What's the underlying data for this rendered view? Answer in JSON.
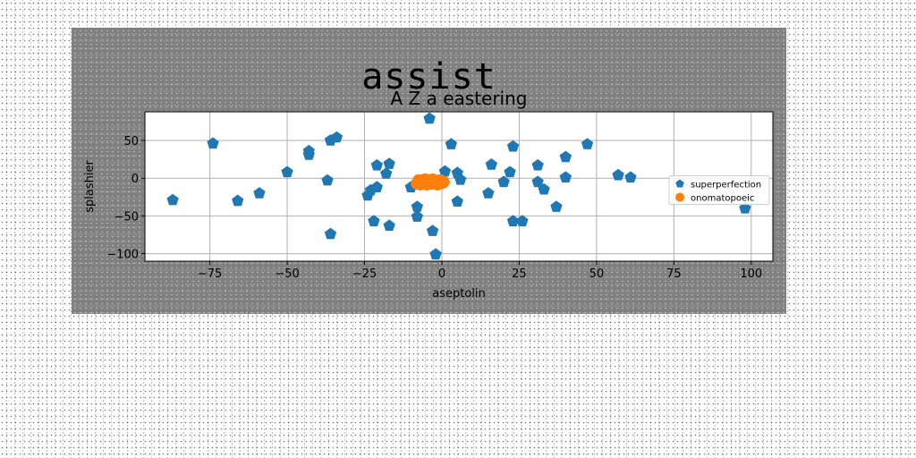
{
  "figure": {
    "title": "assist"
  },
  "colors": {
    "figure_bg": "#808080",
    "axes_bg": "#ffffff",
    "series_1": "#1f77b4",
    "series_2": "#ff7f0e",
    "grid": "#b0b0b0"
  },
  "chart_data": {
    "type": "scatter",
    "title": "A Z a eastering",
    "xlabel": "aseptolin",
    "ylabel": "splashier",
    "xlim": [
      -96,
      107
    ],
    "ylim": [
      -110,
      88
    ],
    "xticks": [
      -75,
      -50,
      -25,
      0,
      25,
      50,
      75,
      100
    ],
    "xtick_labels": [
      "−75",
      "−50",
      "−25",
      "0",
      "25",
      "50",
      "75",
      "100"
    ],
    "yticks": [
      50,
      0,
      -50,
      -100
    ],
    "ytick_labels": [
      "50",
      "0",
      "−50",
      "−100"
    ],
    "grid": true,
    "legend_position": "center-right",
    "series": [
      {
        "name": "superperfection",
        "marker": "pentagon",
        "color": "#1f77b4",
        "points": [
          [
            -87,
            -29
          ],
          [
            -74,
            46
          ],
          [
            -66,
            -30
          ],
          [
            -59,
            -20
          ],
          [
            -50,
            8
          ],
          [
            -43,
            36
          ],
          [
            -43,
            31
          ],
          [
            -37,
            -3
          ],
          [
            -36,
            50
          ],
          [
            -34,
            54
          ],
          [
            -36,
            -74
          ],
          [
            -24,
            -23
          ],
          [
            -23,
            -16
          ],
          [
            -22,
            -57
          ],
          [
            -21,
            -12
          ],
          [
            -21,
            17
          ],
          [
            -18,
            6
          ],
          [
            -17,
            -63
          ],
          [
            -17,
            19
          ],
          [
            -10,
            -12
          ],
          [
            -8,
            -38
          ],
          [
            -8,
            -51
          ],
          [
            -4,
            79
          ],
          [
            -3,
            -70
          ],
          [
            -2,
            -101
          ],
          [
            1,
            9
          ],
          [
            3,
            45
          ],
          [
            5,
            -31
          ],
          [
            5,
            7
          ],
          [
            6,
            -2
          ],
          [
            15,
            -20
          ],
          [
            16,
            18
          ],
          [
            20,
            -5
          ],
          [
            22,
            8
          ],
          [
            23,
            42
          ],
          [
            23,
            -57
          ],
          [
            26,
            -57
          ],
          [
            31,
            17
          ],
          [
            31,
            -5
          ],
          [
            33,
            -15
          ],
          [
            37,
            -38
          ],
          [
            40,
            28
          ],
          [
            40,
            1
          ],
          [
            47,
            45
          ],
          [
            57,
            4
          ],
          [
            61,
            1
          ],
          [
            98,
            -40
          ]
        ]
      },
      {
        "name": "onomatopoeic",
        "marker": "circle",
        "color": "#ff7f0e",
        "points": [
          [
            -8,
            -7
          ],
          [
            -7.5,
            -3
          ],
          [
            -7,
            -8
          ],
          [
            -6,
            -5
          ],
          [
            -5.5,
            -2
          ],
          [
            -5,
            -8
          ],
          [
            -4,
            -5
          ],
          [
            -3.5,
            -7
          ],
          [
            -3,
            -2
          ],
          [
            -2.5,
            -6
          ],
          [
            -2,
            -4
          ],
          [
            -1,
            -7
          ],
          [
            -0.5,
            -3
          ],
          [
            0,
            -6
          ],
          [
            0.5,
            -5
          ],
          [
            -6.5,
            -6
          ],
          [
            -4.5,
            -3
          ],
          [
            -1.5,
            -8
          ]
        ]
      }
    ]
  }
}
